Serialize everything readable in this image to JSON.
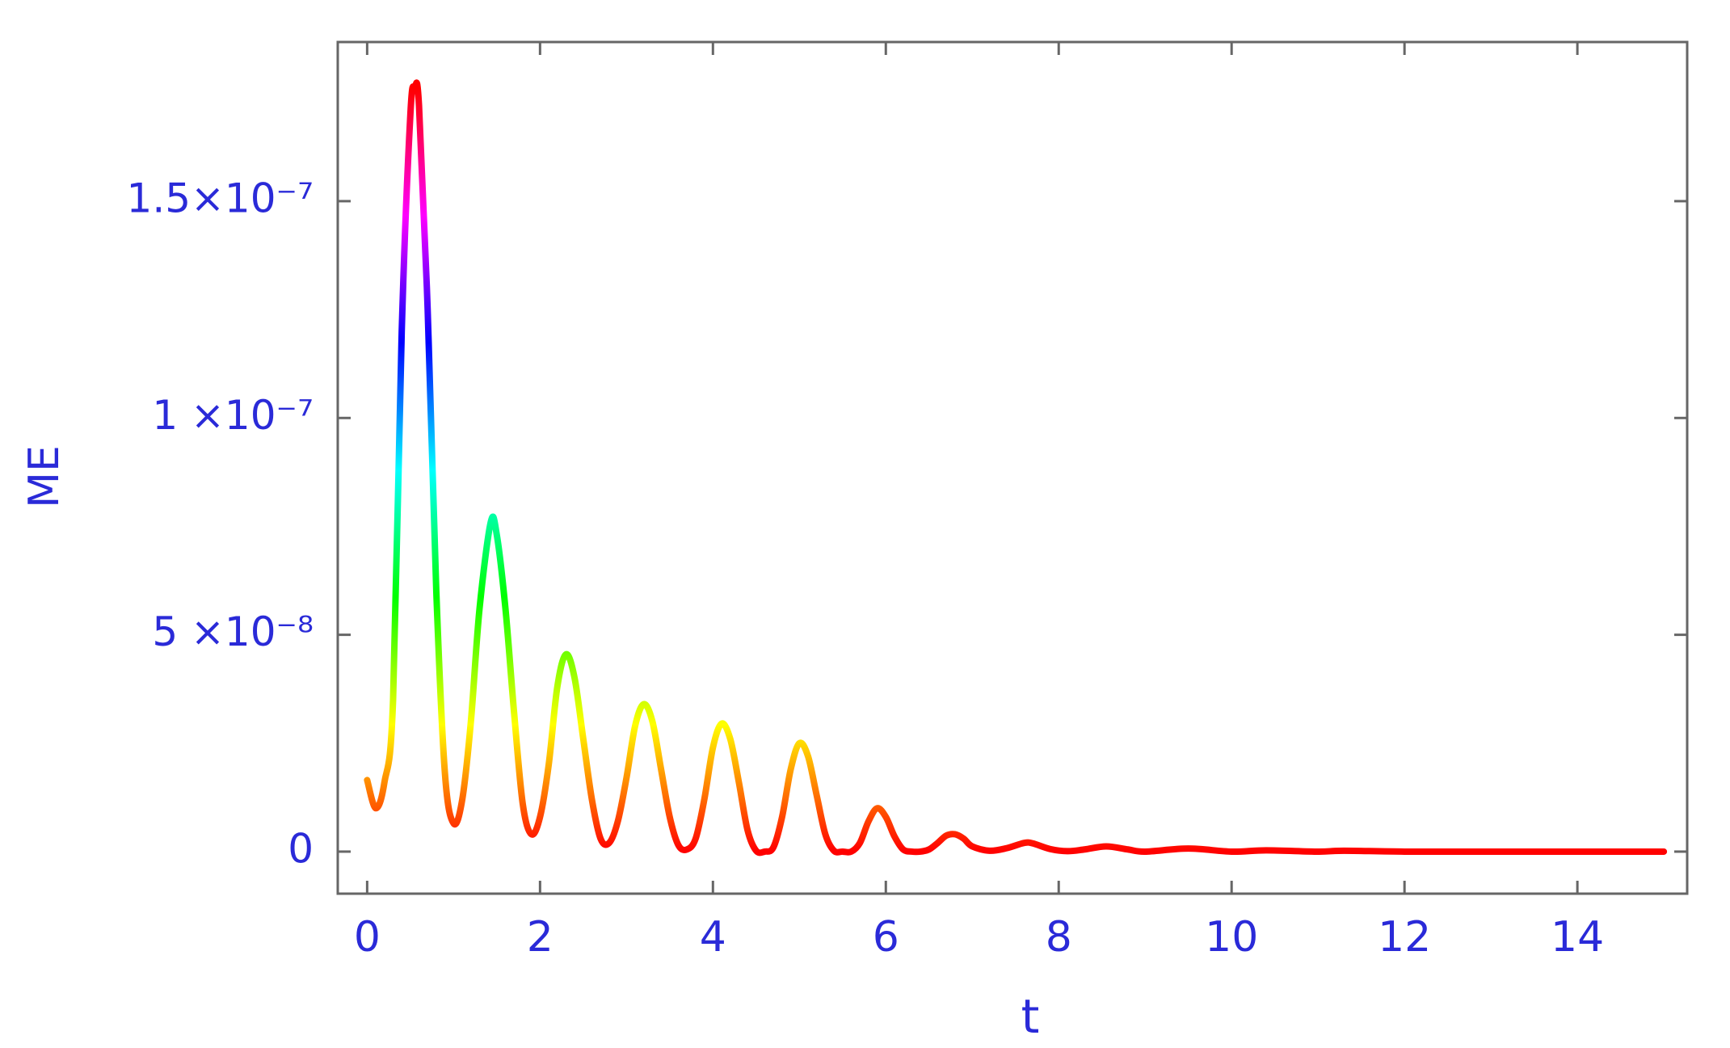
{
  "chart_data": {
    "type": "line",
    "x_label": "t",
    "y_label": "ME",
    "xlim": [
      -0.34,
      15.27
    ],
    "ylim": [
      -9.7e-09,
      1.867e-07
    ],
    "xticks": [
      0,
      2,
      4,
      6,
      8,
      10,
      12,
      14
    ],
    "yticks": [
      0,
      {
        "value": 5e-08,
        "label": "5 ×10⁻⁸"
      },
      {
        "value": 1e-07,
        "label": "1 ×10⁻⁷"
      },
      {
        "value": 1.5e-07,
        "label": "1.5×10⁻⁷"
      }
    ],
    "color_stops": [
      "#ff0000",
      "#ffff00",
      "#00ff00",
      "#00ffff",
      "#0000ff",
      "#ff00ff",
      "#ff0000"
    ],
    "x": [
      0,
      0.1,
      0.2,
      0.3,
      0.4,
      0.5,
      0.55,
      0.6,
      0.7,
      0.8,
      0.9,
      1.0,
      1.1,
      1.2,
      1.3,
      1.43,
      1.5,
      1.6,
      1.7,
      1.8,
      1.9,
      2.0,
      2.1,
      2.2,
      2.3,
      2.4,
      2.5,
      2.6,
      2.7,
      2.8,
      2.9,
      3.0,
      3.1,
      3.2,
      3.3,
      3.4,
      3.5,
      3.6,
      3.7,
      3.8,
      3.9,
      4.0,
      4.1,
      4.2,
      4.3,
      4.4,
      4.5,
      4.6,
      4.7,
      4.8,
      4.9,
      5.0,
      5.1,
      5.2,
      5.3,
      5.4,
      5.5,
      5.6,
      5.7,
      5.8,
      5.9,
      6.0,
      6.1,
      6.2,
      6.3,
      6.4,
      6.5,
      6.6,
      6.7,
      6.8,
      6.9,
      7.0,
      7.2,
      7.4,
      7.6,
      7.7,
      7.9,
      8.1,
      8.3,
      8.55,
      8.8,
      9.0,
      9.5,
      10,
      10.4,
      11,
      11.3,
      12,
      13,
      14,
      15
    ],
    "values": [
      1.65e-08,
      1e-08,
      1.6e-08,
      3.5e-08,
      1.2e-07,
      1.7e-07,
      1.76e-07,
      1.72e-07,
      1.25e-07,
      6e-08,
      1.8e-08,
      6.5e-09,
      1.2e-08,
      3e-08,
      5.6e-08,
      7.6e-08,
      7.3e-08,
      5.6e-08,
      3.2e-08,
      1.1e-08,
      4e-09,
      8e-09,
      2e-08,
      3.8e-08,
      4.55e-08,
      4e-08,
      2.6e-08,
      1.2e-08,
      3e-09,
      2e-09,
      7e-09,
      1.7e-08,
      2.9e-08,
      3.4e-08,
      3e-08,
      1.9e-08,
      8e-09,
      1.5e-09,
      5e-10,
      3e-09,
      1.2e-08,
      2.4e-08,
      2.95e-08,
      2.6e-08,
      1.6e-08,
      5e-09,
      2e-10,
      0,
      1e-09,
      8e-09,
      1.9e-08,
      2.5e-08,
      2.2e-08,
      1.3e-08,
      4e-09,
      2e-10,
      0,
      0,
      2e-09,
      7e-09,
      1e-08,
      8e-09,
      3.5e-09,
      5e-10,
      0,
      0,
      5e-10,
      2e-09,
      3.7e-09,
      4e-09,
      3e-09,
      1.2e-09,
      2e-10,
      8e-10,
      2e-09,
      1.9e-09,
      6e-10,
      1e-10,
      5e-10,
      1.2e-09,
      5e-10,
      0,
      7e-10,
      0,
      3e-10,
      0,
      2e-10,
      0,
      0,
      0,
      0
    ]
  }
}
